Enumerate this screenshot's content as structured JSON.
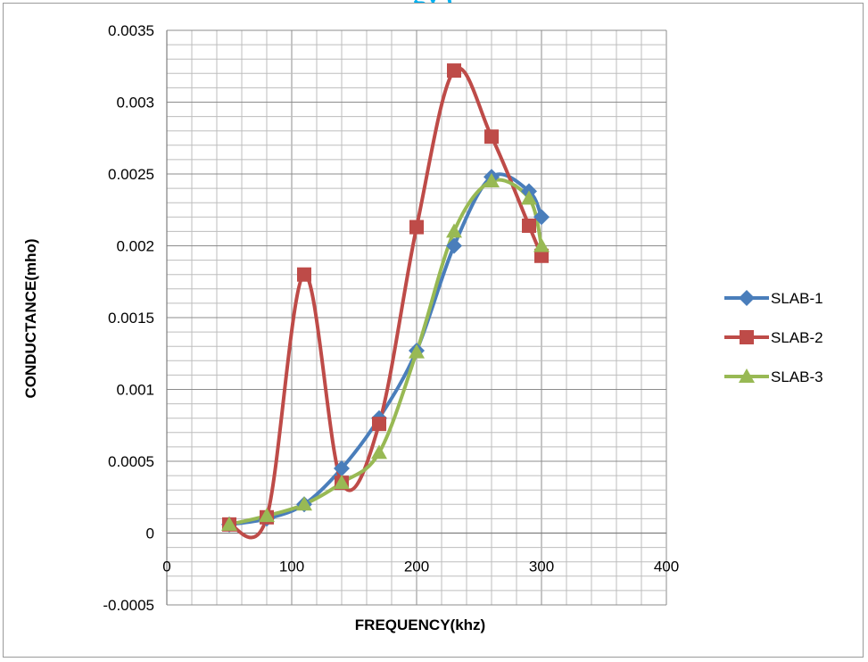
{
  "header": {
    "title_fragment": "gy ("
  },
  "chart_data": {
    "type": "line",
    "title": "",
    "xlabel": "FREQUENCY(khz)",
    "ylabel": "CONDUCTANCE(mho)",
    "xlim": [
      0,
      400
    ],
    "ylim": [
      -0.0005,
      0.0035
    ],
    "x_ticks": [
      "0",
      "100",
      "200",
      "300",
      "400"
    ],
    "y_ticks": [
      "-0.0005",
      "0",
      "0.0005",
      "0.001",
      "0.0015",
      "0.002",
      "0.0025",
      "0.003",
      "0.0035"
    ],
    "grid": true,
    "minor_grid": true,
    "legend_position": "right",
    "smoothed": true,
    "series": [
      {
        "name": "SLAB-1",
        "marker": "diamond",
        "color": "#4a7ebb",
        "x": [
          50,
          80,
          110,
          140,
          170,
          200,
          230,
          260,
          290,
          300
        ],
        "y": [
          6e-05,
          0.0001,
          0.0002,
          0.00045,
          0.0008,
          0.00127,
          0.002,
          0.00248,
          0.00238,
          0.0022
        ]
      },
      {
        "name": "SLAB-2",
        "marker": "square",
        "color": "#be4b48",
        "x": [
          50,
          80,
          110,
          140,
          170,
          200,
          230,
          260,
          290,
          300
        ],
        "y": [
          6e-05,
          0.00011,
          0.0018,
          0.00035,
          0.00076,
          0.00213,
          0.00322,
          0.00276,
          0.00214,
          0.00193
        ]
      },
      {
        "name": "SLAB-3",
        "marker": "triangle",
        "color": "#98b954",
        "x": [
          50,
          80,
          110,
          140,
          170,
          200,
          230,
          260,
          290,
          300
        ],
        "y": [
          6e-05,
          0.00012,
          0.0002,
          0.00035,
          0.00056,
          0.00126,
          0.0021,
          0.00245,
          0.00233,
          0.002
        ]
      }
    ]
  }
}
